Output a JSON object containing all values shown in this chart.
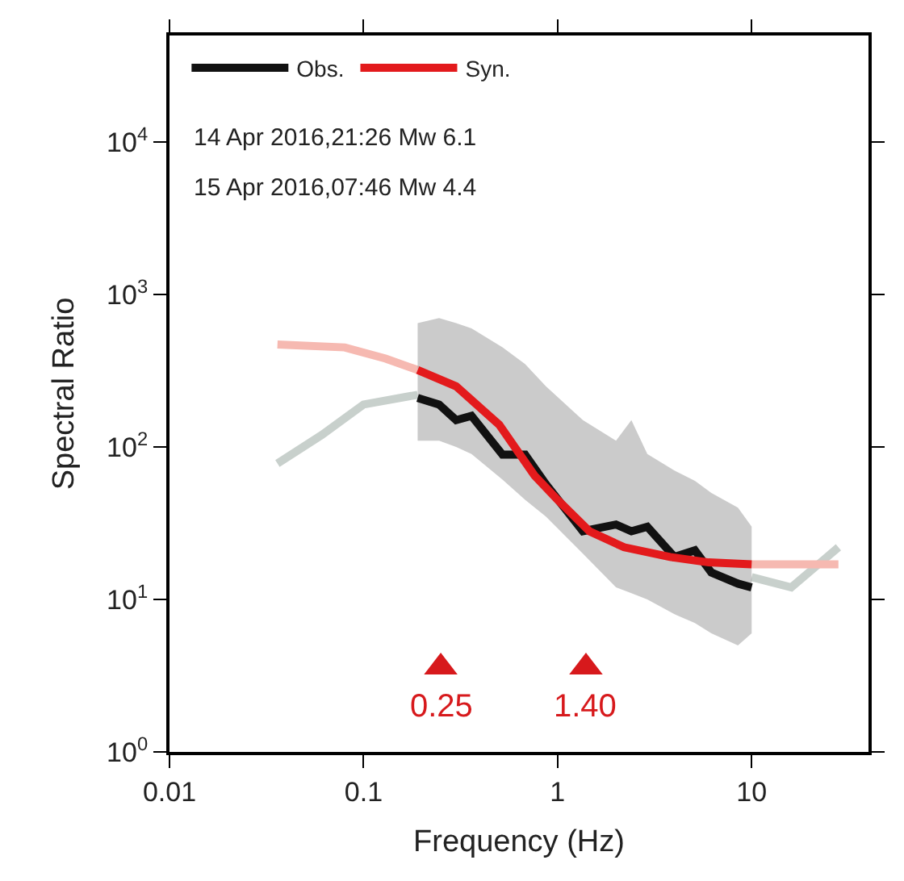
{
  "chart_data": {
    "type": "line",
    "xlabel": "Frequency (Hz)",
    "ylabel": "Spectral Ratio",
    "log": "xy",
    "legend": "top left",
    "annotations": [
      "14 Apr 2016,21:26 Mw 6.1",
      "15 Apr 2016,07:46 Mw 4.4",
      {
        "text": "0.25",
        "x": 0.25,
        "y": 3.6
      },
      {
        "text": "1.40",
        "x": 1.4,
        "y": 3.6
      }
    ],
    "xlim": [
      0.01,
      40
    ],
    "xticks": [
      0.01,
      0.1,
      1,
      10
    ],
    "ylim": [
      1,
      50000
    ],
    "yticks": [
      {
        "value": 1,
        "label": "10$^{0}$"
      },
      {
        "value": 10,
        "label": "10$^{1}$"
      },
      {
        "value": 100,
        "label": "10$^{2}$"
      },
      {
        "value": 1000,
        "label": "10$^{3}$"
      },
      {
        "value": 10000,
        "label": "10$^{4}$"
      }
    ],
    "series": [
      {
        "color": "#c8d0cc",
        "x": [
          0.036,
          0.061,
          0.1,
          0.19
        ],
        "values": [
          78,
          120,
          190,
          220
        ]
      },
      {
        "color": "#c8d0cc",
        "x": [
          10,
          16,
          28
        ],
        "values": [
          14,
          12,
          22
        ]
      },
      {
        "color": "#f6b9b1",
        "x": [
          0.036,
          0.08,
          0.13,
          0.19
        ],
        "values": [
          470,
          450,
          380,
          320
        ]
      },
      {
        "color": "#f6b9b1",
        "x": [
          10,
          28
        ],
        "values": [
          17,
          17
        ]
      },
      {
        "name": "Obs.",
        "color": "#111111",
        "x": [
          0.19,
          0.245,
          0.3,
          0.36,
          0.52,
          0.68,
          0.87,
          1.35,
          2.0,
          2.4,
          2.9,
          4.0,
          5.1,
          6.2,
          8.5,
          10
        ],
        "values": [
          210,
          190,
          150,
          160,
          89,
          89,
          57,
          28,
          31,
          28,
          30,
          19,
          21,
          15,
          12.7,
          12
        ],
        "lower": [
          110,
          110,
          100,
          90,
          61,
          45,
          35,
          20,
          12,
          11,
          10,
          8,
          7,
          6,
          5,
          6
        ],
        "upper": [
          650,
          700,
          650,
          600,
          450,
          350,
          250,
          150,
          110,
          150,
          90,
          70,
          60,
          50,
          40,
          30
        ]
      },
      {
        "name": "Syn.",
        "color": "#e31a1c",
        "x": [
          0.19,
          0.3,
          0.5,
          0.76,
          1.0,
          1.46,
          2.2,
          3.8,
          6.0,
          10
        ],
        "values": [
          320,
          250,
          140,
          65,
          45,
          28,
          22,
          19,
          17.5,
          17
        ]
      },
      {
        "type": "scatter",
        "marker": "triangle",
        "color": "#d7191c",
        "x": [
          0.25,
          1.4
        ],
        "values": [
          3.6,
          3.6
        ]
      }
    ]
  }
}
